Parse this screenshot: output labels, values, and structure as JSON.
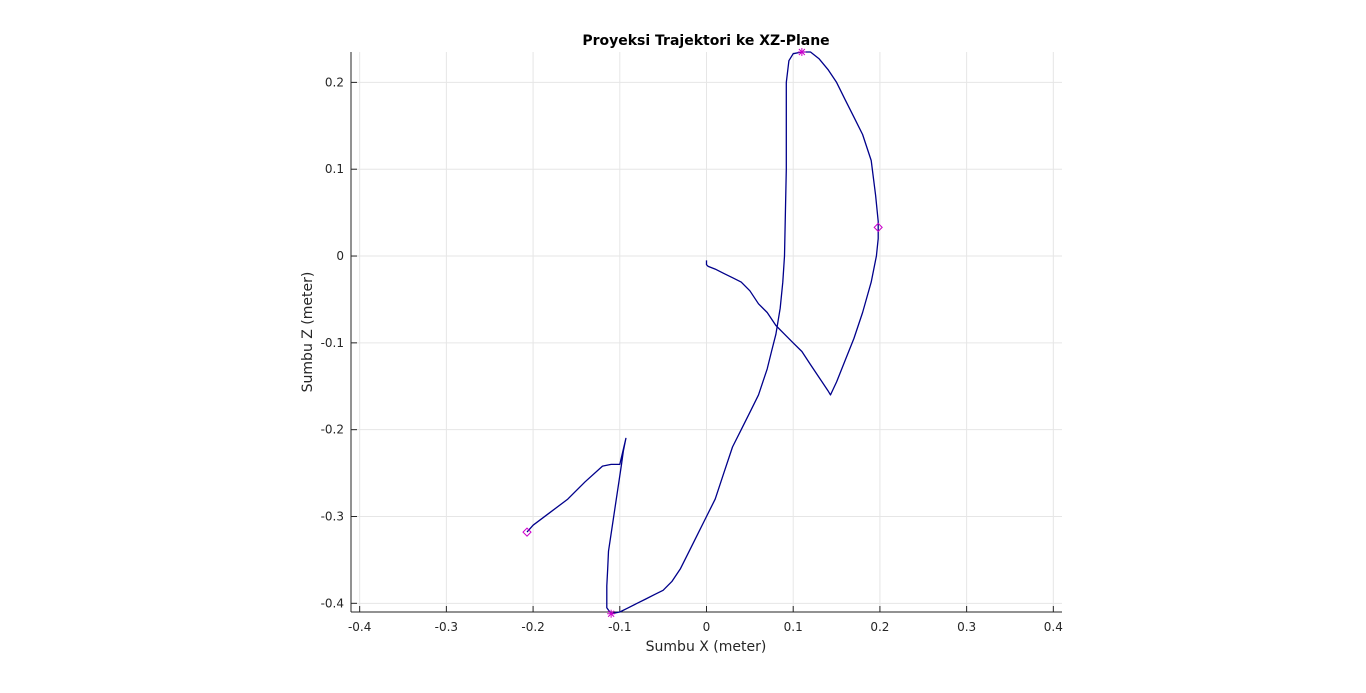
{
  "chart_data": {
    "type": "line",
    "title": "Proyeksi Trajektori ke XZ-Plane",
    "xlabel": "Sumbu X (meter)",
    "ylabel": "Sumbu Z (meter)",
    "xlim": [
      -0.41,
      0.41
    ],
    "ylim": [
      -0.41,
      0.235
    ],
    "xticks": [
      -0.4,
      -0.3,
      -0.2,
      -0.1,
      0,
      0.1,
      0.2,
      0.3,
      0.4
    ],
    "xtick_labels": [
      "-0.4",
      "-0.3",
      "-0.2",
      "-0.1",
      "0",
      "0.1",
      "0.2",
      "0.3",
      "0.4"
    ],
    "yticks": [
      -0.4,
      -0.3,
      -0.2,
      -0.1,
      0,
      0.1,
      0.2
    ],
    "ytick_labels": [
      "-0.4",
      "-0.3",
      "-0.2",
      "-0.1",
      "0",
      "0.1",
      "0.2"
    ],
    "grid": true,
    "colors": {
      "line": "#00008b",
      "marker": "#cc00cc",
      "grid": "#e6e6e6",
      "axis": "#262626"
    },
    "series": [
      {
        "x": [
          0.0,
          0.0,
          0.002,
          0.01,
          0.02,
          0.03,
          0.04,
          0.05,
          0.06,
          0.07,
          0.08,
          0.09,
          0.1,
          0.11,
          0.12,
          0.13,
          0.14,
          0.143,
          0.15,
          0.16,
          0.17,
          0.18,
          0.19,
          0.196,
          0.198,
          0.198,
          0.195,
          0.19,
          0.18,
          0.17,
          0.16,
          0.15,
          0.14,
          0.13,
          0.12,
          0.11,
          0.1,
          0.095,
          0.092,
          0.092,
          0.092,
          0.091,
          0.09,
          0.088,
          0.085,
          0.08,
          0.075,
          0.07,
          0.06,
          0.05,
          0.04,
          0.03,
          0.02,
          0.01,
          0.0,
          -0.01,
          -0.02,
          -0.03,
          -0.04,
          -0.05,
          -0.06,
          -0.07,
          -0.08,
          -0.09,
          -0.1,
          -0.11,
          -0.115,
          -0.115,
          -0.114,
          -0.113,
          -0.11,
          -0.107,
          -0.104,
          -0.101,
          -0.098,
          -0.096,
          -0.094,
          -0.093,
          -0.1,
          -0.11,
          -0.12,
          -0.14,
          -0.16,
          -0.18,
          -0.2,
          -0.207
        ],
        "y": [
          -0.005,
          -0.01,
          -0.012,
          -0.015,
          -0.02,
          -0.025,
          -0.03,
          -0.04,
          -0.055,
          -0.065,
          -0.08,
          -0.09,
          -0.1,
          -0.11,
          -0.125,
          -0.14,
          -0.155,
          -0.16,
          -0.145,
          -0.12,
          -0.095,
          -0.065,
          -0.03,
          0.0,
          0.02,
          0.04,
          0.07,
          0.11,
          0.14,
          0.16,
          0.18,
          0.2,
          0.215,
          0.227,
          0.235,
          0.235,
          0.233,
          0.225,
          0.2,
          0.15,
          0.1,
          0.05,
          0.0,
          -0.03,
          -0.06,
          -0.09,
          -0.11,
          -0.13,
          -0.16,
          -0.18,
          -0.2,
          -0.22,
          -0.25,
          -0.28,
          -0.3,
          -0.32,
          -0.34,
          -0.36,
          -0.375,
          -0.385,
          -0.39,
          -0.395,
          -0.4,
          -0.405,
          -0.41,
          -0.412,
          -0.405,
          -0.38,
          -0.36,
          -0.34,
          -0.32,
          -0.3,
          -0.28,
          -0.26,
          -0.24,
          -0.225,
          -0.215,
          -0.21,
          -0.24,
          -0.24,
          -0.242,
          -0.26,
          -0.28,
          -0.295,
          -0.31,
          -0.318
        ]
      }
    ],
    "markers": [
      {
        "symbol": "star",
        "x": 0.11,
        "y": 0.235
      },
      {
        "symbol": "diamond",
        "x": 0.198,
        "y": 0.033
      },
      {
        "symbol": "star",
        "x": -0.11,
        "y": -0.412
      },
      {
        "symbol": "diamond",
        "x": -0.207,
        "y": -0.318
      }
    ]
  }
}
